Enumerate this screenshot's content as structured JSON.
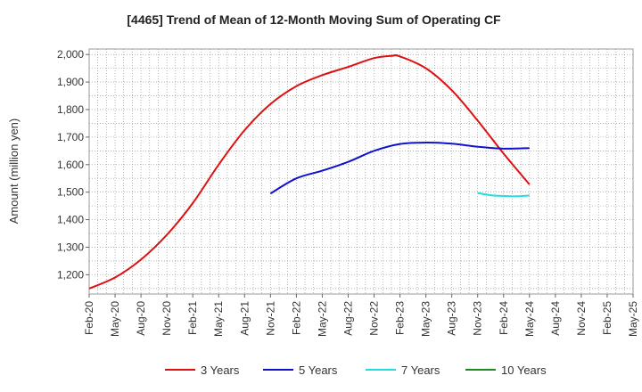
{
  "chart_data": {
    "type": "line",
    "title": "[4465]  Trend of Mean of 12-Month Moving Sum of Operating CF",
    "ylabel": "Amount (million yen)",
    "xlabel": "",
    "ylim": [
      1130,
      2020
    ],
    "yticks": [
      1200,
      1300,
      1400,
      1500,
      1600,
      1700,
      1800,
      1900,
      2000
    ],
    "ytick_labels": [
      "1,200",
      "1,300",
      "1,400",
      "1,500",
      "1,600",
      "1,700",
      "1,800",
      "1,900",
      "2,000"
    ],
    "categories": [
      "Feb-20",
      "May-20",
      "Aug-20",
      "Nov-20",
      "Feb-21",
      "May-21",
      "Aug-21",
      "Nov-21",
      "Feb-22",
      "May-22",
      "Aug-22",
      "Nov-22",
      "Feb-23",
      "May-23",
      "Aug-23",
      "Nov-23",
      "Feb-24",
      "May-24",
      "Aug-24",
      "Nov-24",
      "Feb-25",
      "May-25"
    ],
    "grid": true,
    "legend_position": "bottom",
    "series": [
      {
        "name": "3 Years",
        "color": "#dd1111",
        "x": [
          0,
          1,
          2,
          3,
          4,
          5,
          6,
          7,
          8,
          9,
          10,
          11,
          11.67,
          12,
          13,
          14,
          15,
          16,
          17
        ],
        "values": [
          1150,
          1190,
          1255,
          1345,
          1460,
          1600,
          1725,
          1820,
          1885,
          1925,
          1955,
          1987,
          1995,
          1993,
          1950,
          1870,
          1760,
          1640,
          1528
        ]
      },
      {
        "name": "5 Years",
        "color": "#1111cc",
        "x": [
          7,
          8,
          9,
          10,
          11,
          12,
          13,
          14,
          15,
          16,
          17
        ],
        "values": [
          1495,
          1550,
          1578,
          1610,
          1650,
          1675,
          1680,
          1676,
          1665,
          1658,
          1660
        ]
      },
      {
        "name": "7 Years",
        "color": "#22dddd",
        "x": [
          15,
          15.5,
          16,
          16.5,
          17
        ],
        "values": [
          1497,
          1489,
          1486,
          1485,
          1488
        ]
      },
      {
        "name": "10 Years",
        "color": "#228822",
        "x": [],
        "values": []
      }
    ]
  }
}
